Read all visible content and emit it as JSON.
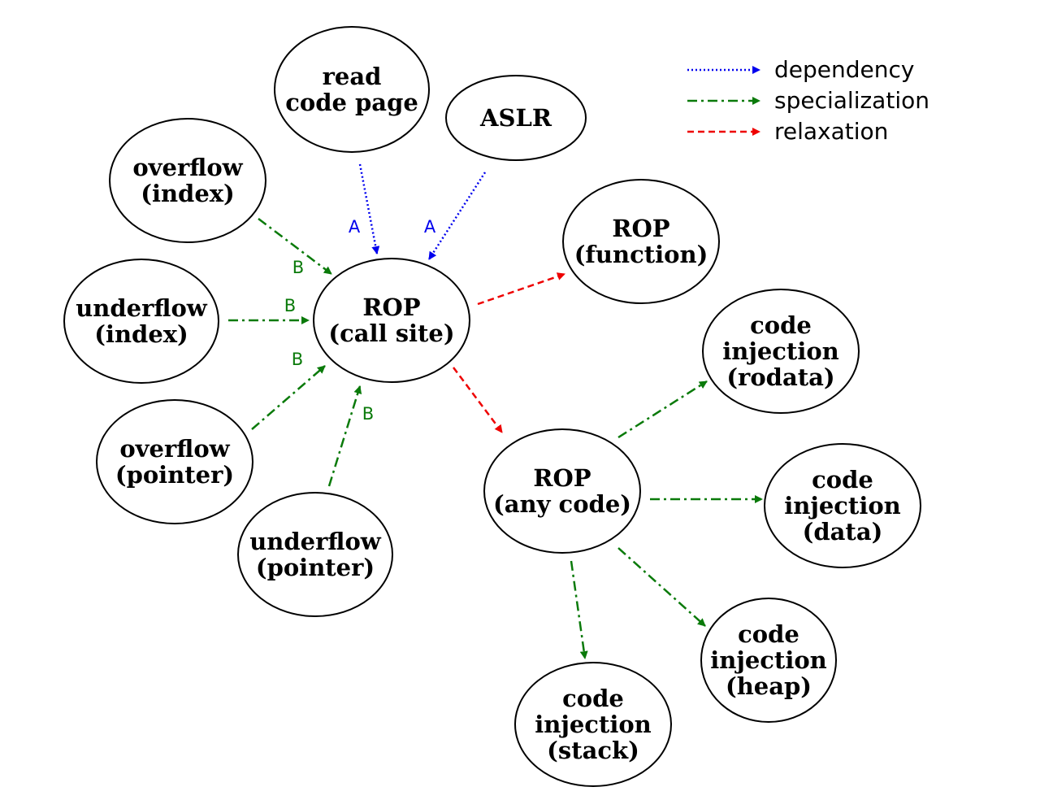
{
  "colors": {
    "dependency": "#0000ee",
    "specialization": "#0a7a0a",
    "relaxation": "#ee0000"
  },
  "legend": [
    {
      "label": "dependency",
      "style": "dependency"
    },
    {
      "label": "specialization",
      "style": "specialization"
    },
    {
      "label": "relaxation",
      "style": "relaxation"
    }
  ],
  "nodes": {
    "read_code_page": [
      "read",
      "code page"
    ],
    "aslr": [
      "ASLR"
    ],
    "overflow_index": [
      "overflow",
      "(index)"
    ],
    "underflow_index": [
      "underflow",
      "(index)"
    ],
    "overflow_pointer": [
      "overflow",
      "(pointer)"
    ],
    "underflow_pointer": [
      "underflow",
      "(pointer)"
    ],
    "rop_call_site": [
      "ROP",
      "(call site)"
    ],
    "rop_function": [
      "ROP",
      "(function)"
    ],
    "rop_any_code": [
      "ROP",
      "(any code)"
    ],
    "ci_rodata": [
      "code",
      "injection",
      "(rodata)"
    ],
    "ci_data": [
      "code",
      "injection",
      "(data)"
    ],
    "ci_heap": [
      "code",
      "injection",
      "(heap)"
    ],
    "ci_stack": [
      "code",
      "injection",
      "(stack)"
    ]
  },
  "edges": [
    {
      "from": "read_code_page",
      "to": "rop_call_site",
      "type": "dependency",
      "label": "A"
    },
    {
      "from": "aslr",
      "to": "rop_call_site",
      "type": "dependency",
      "label": "A"
    },
    {
      "from": "overflow_index",
      "to": "rop_call_site",
      "type": "specialization",
      "label": "B"
    },
    {
      "from": "underflow_index",
      "to": "rop_call_site",
      "type": "specialization",
      "label": "B"
    },
    {
      "from": "overflow_pointer",
      "to": "rop_call_site",
      "type": "specialization",
      "label": "B"
    },
    {
      "from": "underflow_pointer",
      "to": "rop_call_site",
      "type": "specialization",
      "label": "B"
    },
    {
      "from": "rop_call_site",
      "to": "rop_function",
      "type": "relaxation",
      "label": ""
    },
    {
      "from": "rop_call_site",
      "to": "rop_any_code",
      "type": "relaxation",
      "label": ""
    },
    {
      "from": "rop_any_code",
      "to": "ci_rodata",
      "type": "specialization",
      "label": ""
    },
    {
      "from": "rop_any_code",
      "to": "ci_data",
      "type": "specialization",
      "label": ""
    },
    {
      "from": "rop_any_code",
      "to": "ci_heap",
      "type": "specialization",
      "label": ""
    },
    {
      "from": "rop_any_code",
      "to": "ci_stack",
      "type": "specialization",
      "label": ""
    }
  ]
}
